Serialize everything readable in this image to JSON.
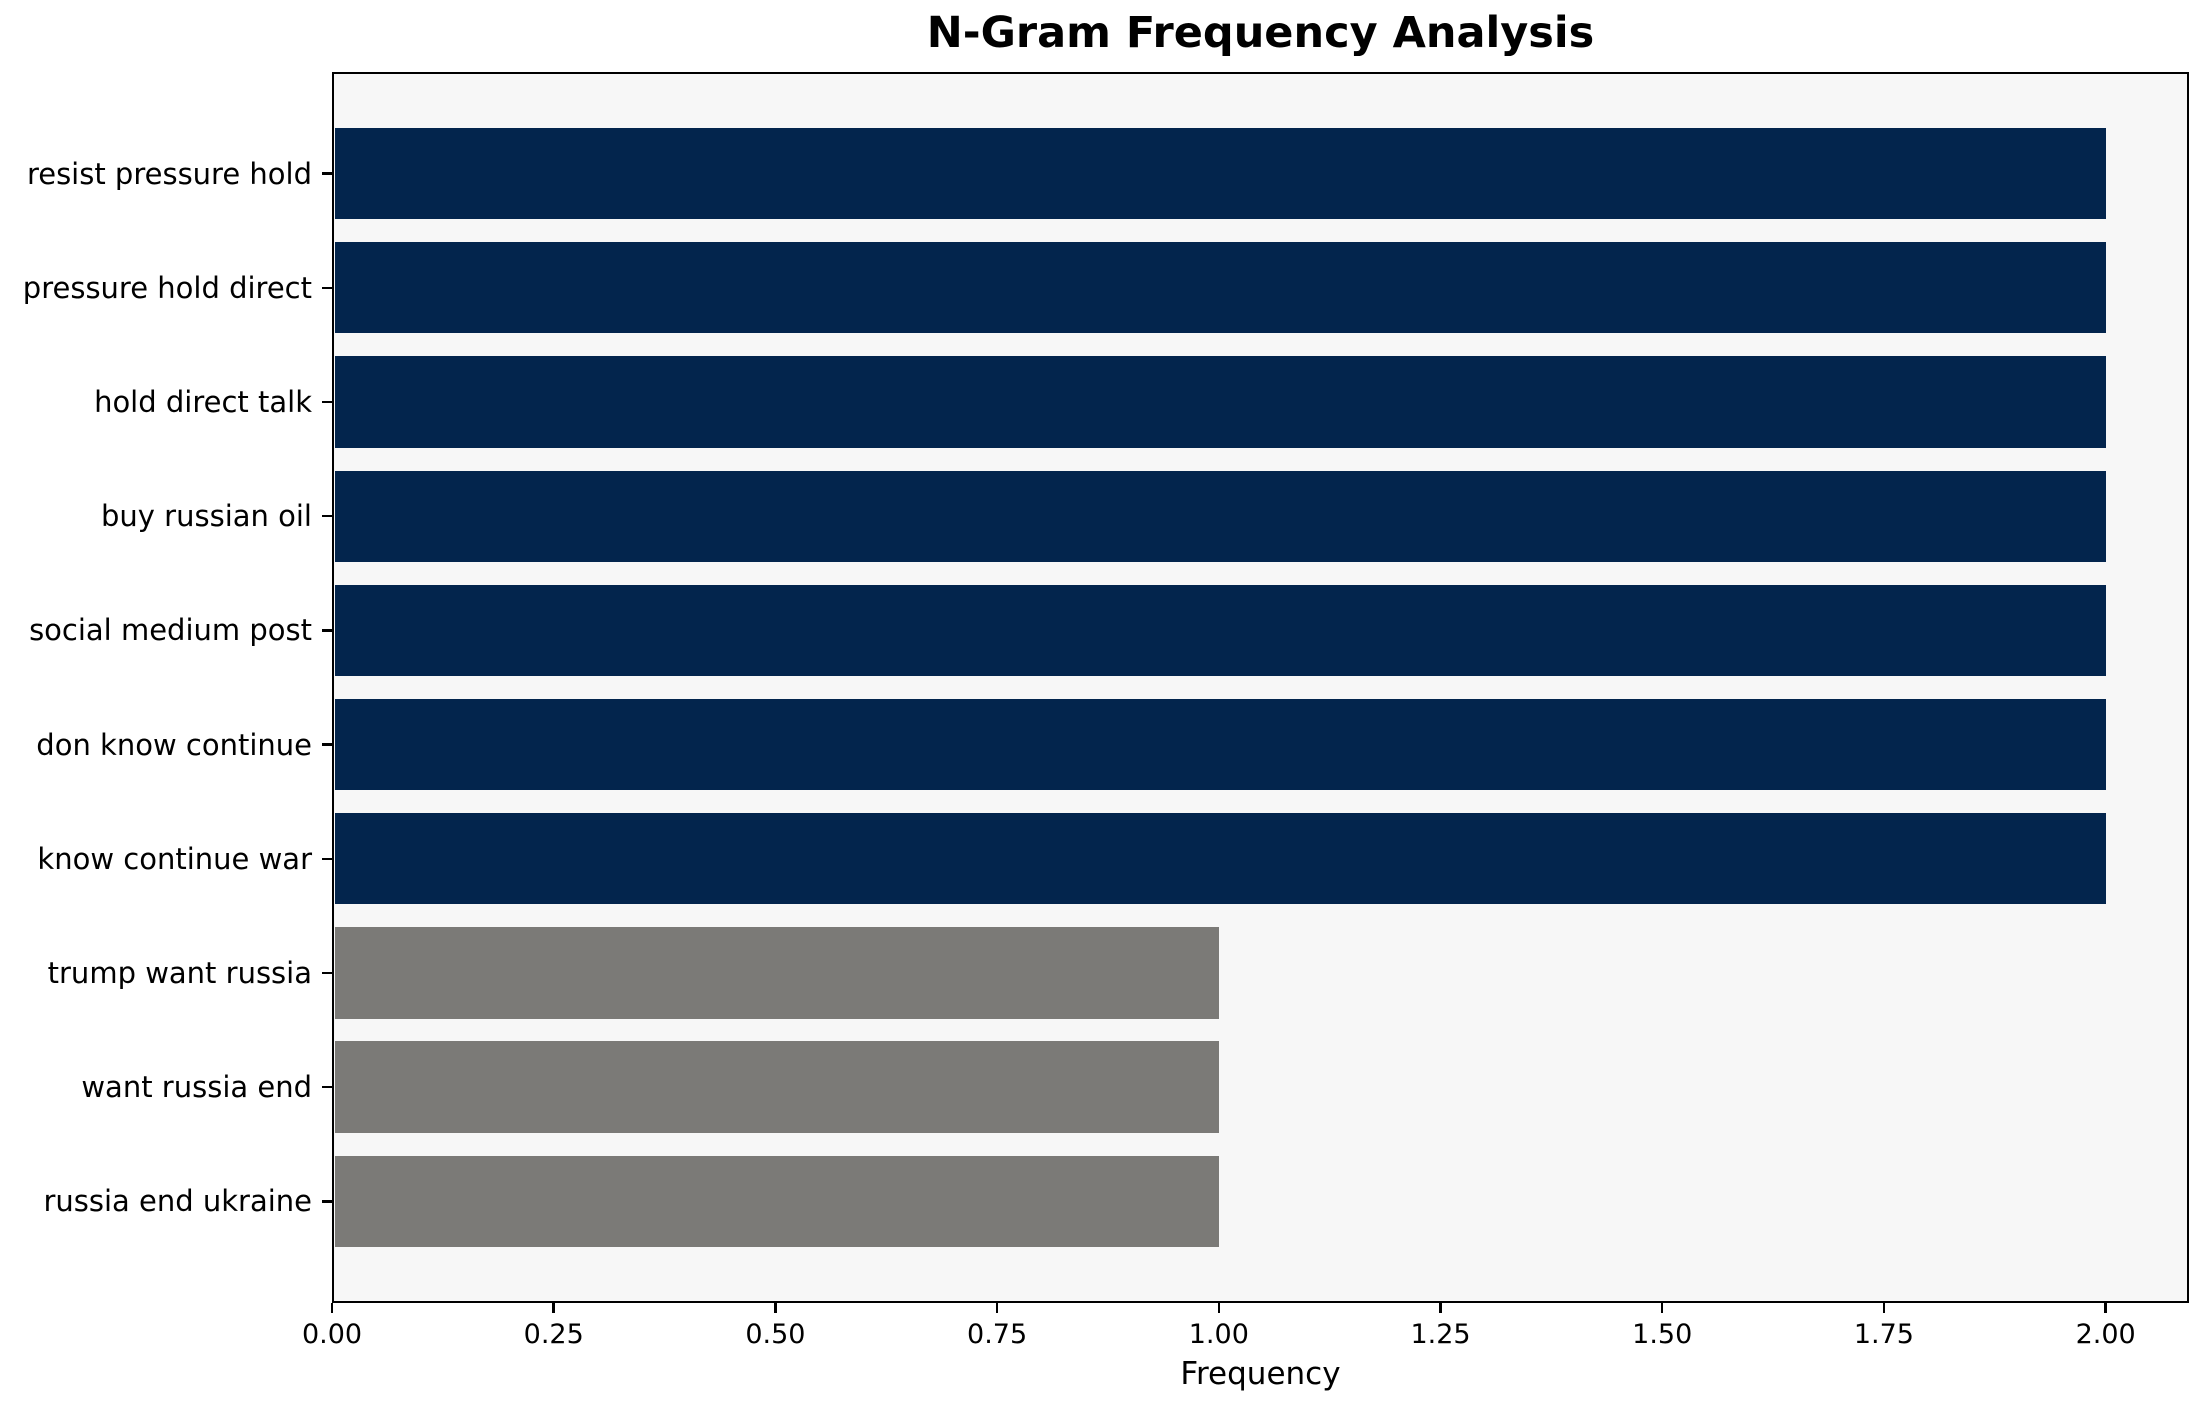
{
  "chart_data": {
    "type": "bar",
    "orientation": "horizontal",
    "title": "N-Gram Frequency Analysis",
    "xlabel": "Frequency",
    "ylabel": "",
    "categories": [
      "resist pressure hold",
      "pressure hold direct",
      "hold direct talk",
      "buy russian oil",
      "social medium post",
      "don know continue",
      "know continue war",
      "trump want russia",
      "want russia end",
      "russia end ukraine"
    ],
    "values": [
      2,
      2,
      2,
      2,
      2,
      2,
      2,
      1,
      1,
      1
    ],
    "bar_colors": [
      "#03254d",
      "#03254d",
      "#03254d",
      "#03254d",
      "#03254d",
      "#03254d",
      "#03254d",
      "#7b7a77",
      "#7b7a77",
      "#7b7a77"
    ],
    "xlim": [
      0,
      2.094
    ],
    "xticks": [
      0,
      0.25,
      0.5,
      0.75,
      1.0,
      1.25,
      1.5,
      1.75,
      2.0
    ],
    "xtick_labels": [
      "0.00",
      "0.25",
      "0.50",
      "0.75",
      "1.00",
      "1.25",
      "1.50",
      "1.75",
      "2.00"
    ],
    "grid": false,
    "legend": null,
    "colors": {
      "high_freq_bar": "#03254d",
      "low_freq_bar": "#7b7a77",
      "plot_background": "#f7f7f7",
      "figure_background": "#ffffff",
      "axis": "#000000",
      "text": "#000000"
    }
  }
}
